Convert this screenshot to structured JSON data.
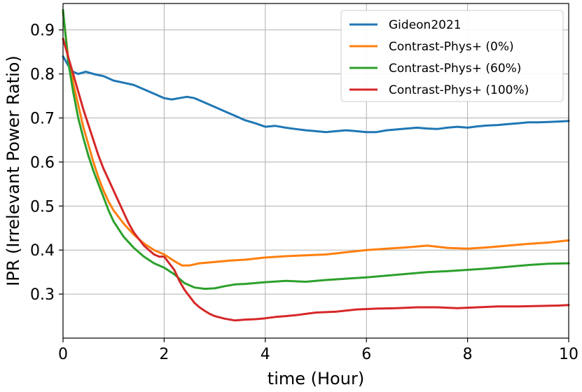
{
  "chart_data": {
    "type": "line",
    "xlabel": "time (Hour)",
    "ylabel": "IPR (Irrelevant Power Ratio)",
    "xlim": [
      0,
      10
    ],
    "ylim": [
      0.2,
      0.96
    ],
    "xticks": [
      0,
      2,
      4,
      6,
      8,
      10
    ],
    "xtick_labels": [
      "0",
      "2",
      "4",
      "6",
      "8",
      "10"
    ],
    "yticks": [
      0.3,
      0.4,
      0.5,
      0.6,
      0.7,
      0.8,
      0.9
    ],
    "ytick_labels": [
      "0.3",
      "0.4",
      "0.5",
      "0.6",
      "0.7",
      "0.8",
      "0.9"
    ],
    "grid": true,
    "legend_position": "top-right",
    "series": [
      {
        "name": "Gideon2021",
        "color": "#1f77b4",
        "x": [
          0,
          0.1,
          0.2,
          0.3,
          0.45,
          0.6,
          0.8,
          1.0,
          1.2,
          1.4,
          1.6,
          1.8,
          2.0,
          2.15,
          2.3,
          2.45,
          2.6,
          2.8,
          3.0,
          3.2,
          3.4,
          3.6,
          3.8,
          4.0,
          4.2,
          4.4,
          4.6,
          4.8,
          5.0,
          5.2,
          5.4,
          5.6,
          5.8,
          6.0,
          6.2,
          6.4,
          6.6,
          6.8,
          7.0,
          7.2,
          7.4,
          7.6,
          7.8,
          8.0,
          8.2,
          8.4,
          8.6,
          8.8,
          9.0,
          9.2,
          9.4,
          9.6,
          9.8,
          10.0
        ],
        "y": [
          0.84,
          0.82,
          0.805,
          0.8,
          0.805,
          0.8,
          0.795,
          0.785,
          0.78,
          0.775,
          0.765,
          0.755,
          0.745,
          0.742,
          0.745,
          0.748,
          0.745,
          0.735,
          0.725,
          0.715,
          0.705,
          0.695,
          0.688,
          0.68,
          0.682,
          0.678,
          0.675,
          0.672,
          0.67,
          0.668,
          0.67,
          0.672,
          0.67,
          0.668,
          0.668,
          0.672,
          0.674,
          0.676,
          0.678,
          0.676,
          0.675,
          0.678,
          0.68,
          0.678,
          0.681,
          0.683,
          0.684,
          0.686,
          0.688,
          0.69,
          0.69,
          0.691,
          0.692,
          0.693
        ]
      },
      {
        "name": "Contrast-Phys+ (0%)",
        "color": "#ff7f0e",
        "x": [
          0,
          0.1,
          0.2,
          0.3,
          0.4,
          0.5,
          0.6,
          0.7,
          0.8,
          0.9,
          1.0,
          1.2,
          1.4,
          1.6,
          1.8,
          2.0,
          2.2,
          2.35,
          2.5,
          2.7,
          3.0,
          3.3,
          3.6,
          4.0,
          4.4,
          4.8,
          5.2,
          5.6,
          6.0,
          6.4,
          6.8,
          7.2,
          7.6,
          8.0,
          8.4,
          8.8,
          9.2,
          9.6,
          10.0
        ],
        "y": [
          0.94,
          0.84,
          0.78,
          0.73,
          0.68,
          0.64,
          0.6,
          0.565,
          0.535,
          0.51,
          0.49,
          0.46,
          0.435,
          0.415,
          0.4,
          0.39,
          0.375,
          0.365,
          0.365,
          0.37,
          0.373,
          0.376,
          0.378,
          0.383,
          0.386,
          0.388,
          0.39,
          0.395,
          0.4,
          0.403,
          0.406,
          0.41,
          0.405,
          0.403,
          0.406,
          0.41,
          0.414,
          0.417,
          0.422
        ]
      },
      {
        "name": "Contrast-Phys+ (60%)",
        "color": "#2ca02c",
        "x": [
          0,
          0.1,
          0.2,
          0.3,
          0.4,
          0.5,
          0.6,
          0.7,
          0.8,
          0.9,
          1.0,
          1.2,
          1.4,
          1.6,
          1.8,
          2.0,
          2.2,
          2.4,
          2.6,
          2.8,
          3.0,
          3.2,
          3.4,
          3.6,
          3.8,
          4.0,
          4.4,
          4.8,
          5.2,
          5.6,
          6.0,
          6.4,
          6.8,
          7.2,
          7.6,
          8.0,
          8.4,
          8.8,
          9.2,
          9.6,
          10.0
        ],
        "y": [
          0.945,
          0.83,
          0.76,
          0.7,
          0.655,
          0.615,
          0.58,
          0.55,
          0.52,
          0.49,
          0.465,
          0.43,
          0.405,
          0.385,
          0.37,
          0.36,
          0.345,
          0.325,
          0.315,
          0.312,
          0.313,
          0.318,
          0.322,
          0.323,
          0.325,
          0.327,
          0.33,
          0.328,
          0.332,
          0.335,
          0.338,
          0.342,
          0.346,
          0.35,
          0.352,
          0.355,
          0.358,
          0.362,
          0.366,
          0.369,
          0.37
        ]
      },
      {
        "name": "Contrast-Phys+ (100%)",
        "color": "#d62728",
        "x": [
          0,
          0.1,
          0.2,
          0.3,
          0.4,
          0.5,
          0.6,
          0.7,
          0.8,
          0.9,
          1.0,
          1.1,
          1.2,
          1.3,
          1.4,
          1.5,
          1.6,
          1.7,
          1.8,
          1.9,
          2.0,
          2.1,
          2.2,
          2.3,
          2.4,
          2.5,
          2.6,
          2.7,
          2.8,
          2.9,
          3.0,
          3.2,
          3.4,
          3.6,
          3.8,
          4.0,
          4.2,
          4.4,
          4.6,
          4.8,
          5.0,
          5.4,
          5.8,
          6.2,
          6.6,
          7.0,
          7.4,
          7.8,
          8.2,
          8.6,
          9.0,
          9.4,
          9.8,
          10.0
        ],
        "y": [
          0.88,
          0.84,
          0.8,
          0.76,
          0.72,
          0.685,
          0.65,
          0.615,
          0.585,
          0.56,
          0.535,
          0.51,
          0.485,
          0.46,
          0.44,
          0.425,
          0.41,
          0.4,
          0.39,
          0.385,
          0.385,
          0.37,
          0.355,
          0.33,
          0.31,
          0.295,
          0.28,
          0.27,
          0.262,
          0.255,
          0.25,
          0.244,
          0.24,
          0.242,
          0.243,
          0.245,
          0.248,
          0.25,
          0.252,
          0.255,
          0.258,
          0.26,
          0.265,
          0.267,
          0.268,
          0.27,
          0.27,
          0.268,
          0.27,
          0.272,
          0.272,
          0.273,
          0.274,
          0.275
        ]
      }
    ]
  }
}
